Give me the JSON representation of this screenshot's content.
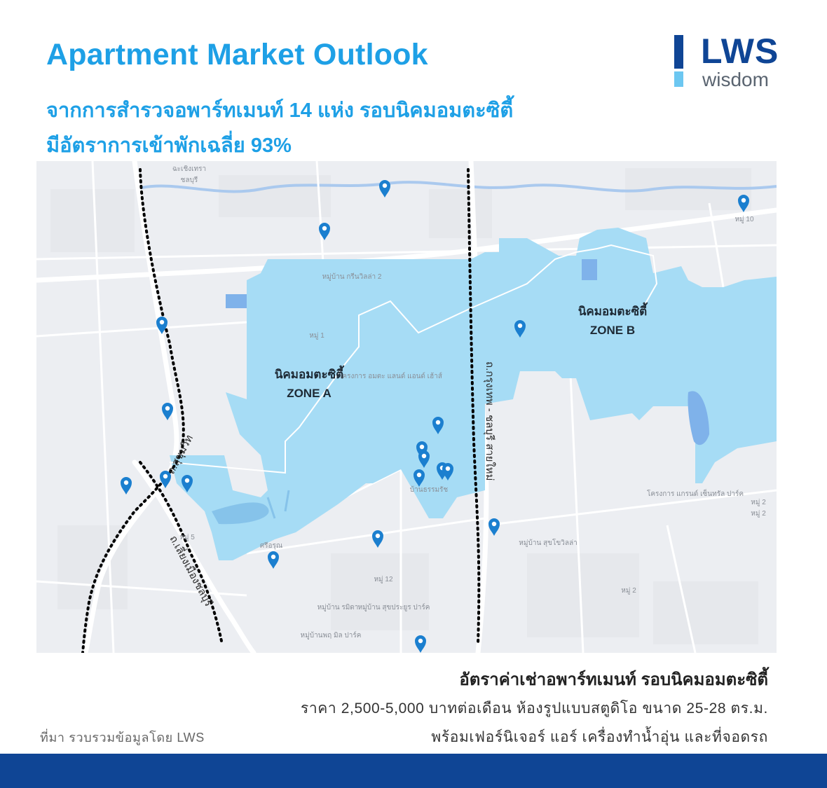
{
  "header": {
    "title": "Apartment Market Outlook",
    "subtitle_line1": "จากการสำรวจอพาร์ทเมนท์ 14 แห่ง รอบนิคมอมตะซิตี้",
    "subtitle_line2": "มีอัตราการเข้าพักเฉลี่ย 93%"
  },
  "logo": {
    "brand": "LWS",
    "tagline": "wisdom",
    "colors": {
      "dark": "#0f4595",
      "light": "#6cc7f1",
      "grey": "#5a6470"
    }
  },
  "map": {
    "zone_a": {
      "name": "นิคมอมตะซิตี้",
      "label": "ZONE A"
    },
    "zone_b": {
      "name": "นิคมอมตะซิตี้",
      "label": "ZONE B"
    },
    "roads": {
      "sukhumvit": "ถ.สุขุมวิท",
      "liang_mueang": "ถ.เลี่ยงเมืองชลบุรี",
      "bangkok_chonburi": "ถ.กรุงเทพ - ชลบุรี สายใหม่"
    },
    "place_labels": [
      "ฉะเชิงเทรา",
      "ชลบุรี",
      "หมู่ 10",
      "หมู่บ้าน กรีนวิลล่า 2",
      "หมู่ 1",
      "โครงการ อมตะ แลนด์ แอนด์ เฮ้าส์",
      "บ้านธรรมรัช",
      "หมู่ 5",
      "ศรีอรุณ",
      "หมู่ 12",
      "หมู่บ้าน รมิดา",
      "หมู่บ้าน สุขประยูร ปาร์ค",
      "หมู่บ้านพฤ มิล ปาร์ค",
      "หมู่บ้าน สุขโขวิลล่า",
      "โครงการ แกรนด์ เซ็นทรัล ปาร์ค",
      "หมู่ 2",
      "หมู่ 2",
      "หมู่ 2"
    ],
    "apartment_count": 14,
    "colors": {
      "zone_fill": "#a6dcf5",
      "pin": "#1b7fcf",
      "road_marker": "#000000"
    }
  },
  "rent": {
    "title": "อัตราค่าเช่าอพาร์ทเมนท์ รอบนิคมอมตะซิตี้",
    "line1": "ราคา 2,500-5,000 บาทต่อเดือน ห้องรูปแบบสตูดิโอ ขนาด 25-28 ตร.ม.",
    "line2": "พร้อมเฟอร์นิเจอร์ แอร์ เครื่องทำน้ำอุ่น และที่จอดรถ"
  },
  "source": "ที่มา รวบรวมข้อมูลโดย LWS",
  "colors": {
    "accent": "#1ea0e6",
    "footer": "#0f4595"
  }
}
